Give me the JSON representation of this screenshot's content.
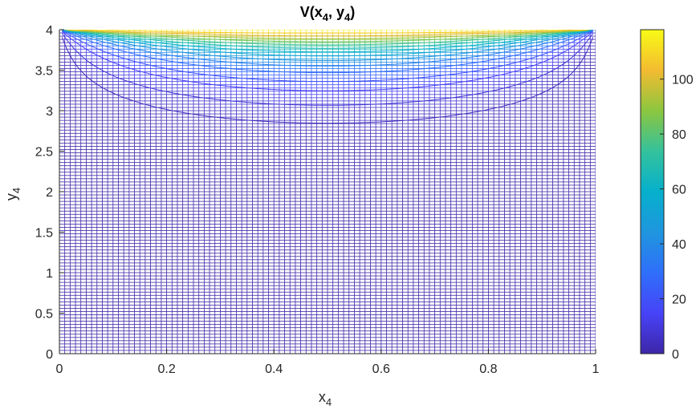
{
  "chart_data": {
    "type": "heatmap",
    "title": "V(x",
    "title_sub1": "4",
    "title_mid": ", y",
    "title_sub2": "4",
    "title_end": ")",
    "xlabel": "x",
    "xlabel_sub": "4",
    "ylabel": "y",
    "ylabel_sub": "4",
    "xlim": [
      0,
      1
    ],
    "ylim": [
      0,
      4
    ],
    "xticks": [
      0,
      0.2,
      0.4,
      0.6,
      0.8,
      1
    ],
    "xtick_labels": [
      "0",
      "0.2",
      "0.4",
      "0.6",
      "0.8",
      "1"
    ],
    "yticks": [
      0,
      0.5,
      1,
      1.5,
      2,
      2.5,
      3,
      3.5,
      4
    ],
    "ytick_labels": [
      "0",
      "0.5",
      "1",
      "1.5",
      "2",
      "2.5",
      "3",
      "3.5",
      "4"
    ],
    "colorbar": {
      "limits": [
        0,
        118
      ],
      "ticks": [
        0,
        20,
        40,
        60,
        80,
        100
      ],
      "tick_labels": [
        "0",
        "20",
        "40",
        "60",
        "80",
        "100"
      ],
      "colormap": "parula"
    },
    "mesh": {
      "x_divisions": 100,
      "y_divisions": 100,
      "boundary_top_value": 118,
      "grid_color": "#3e26a8",
      "note": "Laplace solution: V = sum of sine series, V=V0 on top edge (y=4), 0 on other edges"
    }
  }
}
